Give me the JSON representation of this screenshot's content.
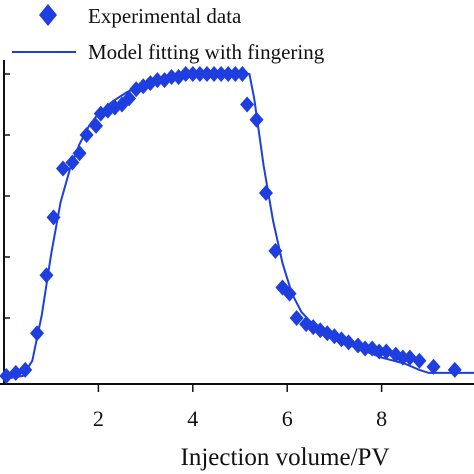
{
  "chart_data": {
    "type": "scatter",
    "xlabel": "Injection volume/PV",
    "ylabel": "",
    "xlim": [
      0,
      10
    ],
    "ylim": [
      0,
      1.0
    ],
    "x_ticks": [
      2,
      4,
      6,
      8
    ],
    "x_tick_labels": [
      "2",
      "4",
      "6",
      "8"
    ],
    "grid": false,
    "legend_position": "top",
    "colors": {
      "series": "#1f3ee0",
      "axis": "#111111"
    },
    "series": [
      {
        "name": "Experimental data",
        "kind": "scatter",
        "marker": "diamond",
        "x": [
          0.05,
          0.25,
          0.45,
          0.7,
          0.9,
          1.05,
          1.25,
          1.45,
          1.6,
          1.75,
          1.95,
          2.05,
          2.2,
          2.35,
          2.5,
          2.65,
          2.8,
          2.95,
          3.1,
          3.25,
          3.4,
          3.55,
          3.7,
          3.85,
          4.0,
          4.15,
          4.3,
          4.45,
          4.6,
          4.75,
          4.9,
          5.05,
          5.15,
          5.35,
          5.55,
          5.75,
          5.9,
          6.05,
          6.2,
          6.4,
          6.55,
          6.7,
          6.85,
          7.0,
          7.15,
          7.3,
          7.5,
          7.65,
          7.8,
          7.95,
          8.1,
          8.3,
          8.45,
          8.6,
          8.8,
          9.1,
          9.55
        ],
        "y": [
          0.01,
          0.02,
          0.03,
          0.15,
          0.34,
          0.53,
          0.69,
          0.71,
          0.74,
          0.8,
          0.83,
          0.87,
          0.88,
          0.89,
          0.9,
          0.92,
          0.95,
          0.96,
          0.97,
          0.98,
          0.98,
          0.99,
          0.99,
          1.0,
          1.0,
          1.0,
          1.0,
          1.0,
          1.0,
          1.0,
          1.0,
          1.0,
          0.9,
          0.85,
          0.61,
          0.42,
          0.3,
          0.28,
          0.2,
          0.18,
          0.17,
          0.16,
          0.15,
          0.14,
          0.13,
          0.12,
          0.11,
          0.1,
          0.1,
          0.09,
          0.09,
          0.08,
          0.07,
          0.07,
          0.06,
          0.04,
          0.03
        ]
      },
      {
        "name": "Model fitting with fingering",
        "kind": "line",
        "x": [
          0.0,
          0.4,
          0.6,
          0.8,
          1.0,
          1.2,
          1.4,
          1.6,
          1.8,
          2.0,
          2.3,
          2.6,
          3.0,
          3.5,
          4.0,
          4.5,
          5.0,
          5.2,
          5.3,
          5.5,
          5.7,
          5.9,
          6.1,
          6.3,
          6.6,
          7.0,
          7.5,
          8.0,
          8.5,
          8.8,
          9.0,
          9.5,
          10.0
        ],
        "y": [
          0.0,
          0.01,
          0.06,
          0.21,
          0.41,
          0.58,
          0.69,
          0.77,
          0.83,
          0.87,
          0.91,
          0.94,
          0.97,
          0.99,
          1.0,
          1.0,
          1.0,
          1.0,
          0.92,
          0.7,
          0.52,
          0.38,
          0.28,
          0.22,
          0.17,
          0.13,
          0.1,
          0.07,
          0.05,
          0.03,
          0.02,
          0.02,
          0.02
        ]
      }
    ]
  }
}
